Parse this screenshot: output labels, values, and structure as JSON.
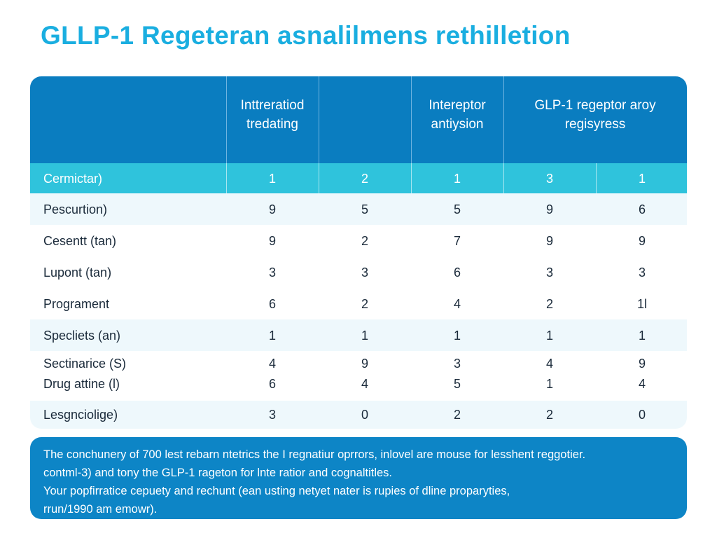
{
  "title": "GLLP-1 Regeteran asnalilmens rethilletion",
  "colors": {
    "title": "#1aaee0",
    "header_bg": "#0a7dc0",
    "highlight_row": "#2fc3dc",
    "footer_bg": "#0d85c6"
  },
  "table": {
    "headers": [
      "Inttreratiod tredating",
      "",
      "Intereptor antiysion",
      "GLP-1 regeptor aroy regisyress"
    ],
    "rows": [
      {
        "label": "Cermictar)",
        "values": [
          "1",
          "2",
          "1",
          "3",
          "1"
        ]
      },
      {
        "label": "Pescurtion)",
        "values": [
          "9",
          "5",
          "5",
          "9",
          "6"
        ]
      },
      {
        "label": "Cesentt (tan)",
        "values": [
          "9",
          "2",
          "7",
          "9",
          "9"
        ]
      },
      {
        "label": "Lupont (tan)",
        "values": [
          "3",
          "3",
          "6",
          "3",
          "3"
        ]
      },
      {
        "label": "Programent",
        "values": [
          "6",
          "2",
          "4",
          "2",
          "1l"
        ]
      },
      {
        "label": "Specliets (an)",
        "values": [
          "1",
          "1",
          "1",
          "1",
          "1"
        ]
      },
      {
        "label": "Sectinarice (S)",
        "values": [
          "4",
          "9",
          "3",
          "4",
          "9"
        ]
      },
      {
        "label": "Drug attine (l)",
        "values": [
          "6",
          "4",
          "5",
          "1",
          "4"
        ]
      },
      {
        "label": "Lesgnciolige)",
        "values": [
          "3",
          "0",
          "2",
          "2",
          "0"
        ]
      }
    ]
  },
  "footer": {
    "lines": [
      "The conchunery of 700 lest rebarn ntetrics the I regnatiur oprrors, inlovel are mouse for lesshent reggotier.",
      "contml-3) and tony the GLP-1 rageton for lnte ratior and cognaltitles.",
      "Your popfirratice cepuety and rechunt (ean usting netyet nater is rupies of dline proparyties,",
      "rrun/1990 am emowr)."
    ]
  }
}
